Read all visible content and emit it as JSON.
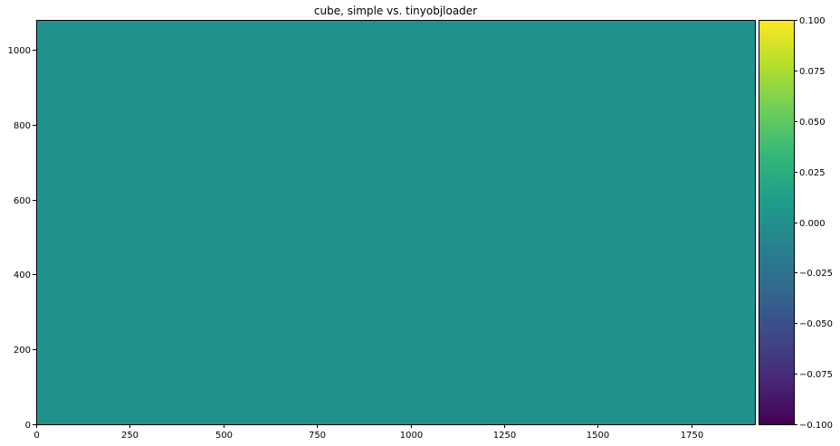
{
  "chart_data": {
    "type": "heatmap",
    "title": "cube, simple vs. tinyobjloader",
    "xlabel": "",
    "ylabel": "",
    "xlim": [
      0,
      1920
    ],
    "ylim": [
      0,
      1080
    ],
    "x_ticks": [
      0,
      250,
      500,
      750,
      1000,
      1250,
      1500,
      1750
    ],
    "x_tick_labels": [
      "0",
      "250",
      "500",
      "750",
      "1000",
      "1250",
      "1500",
      "1750"
    ],
    "y_ticks": [
      0,
      200,
      400,
      600,
      800,
      1000
    ],
    "y_tick_labels": [
      "0",
      "200",
      "400",
      "600",
      "800",
      "1000"
    ],
    "grid": false,
    "colormap": "viridis",
    "field_value": 0.0,
    "colorbar": {
      "vmin": -0.1,
      "vmax": 0.1,
      "ticks": [
        -0.1,
        -0.075,
        -0.05,
        -0.025,
        0.0,
        0.025,
        0.05,
        0.075,
        0.1
      ],
      "tick_labels": [
        "−0.100",
        "−0.075",
        "−0.050",
        "−0.025",
        "0.000",
        "0.025",
        "0.050",
        "0.075",
        "0.100"
      ],
      "placement": "right"
    },
    "colors": {
      "field": "#21918c",
      "viridis_stops": [
        "#440154",
        "#482878",
        "#3e4989",
        "#31688e",
        "#26828e",
        "#1f9e89",
        "#35b779",
        "#6ece58",
        "#b5de2b",
        "#fde725"
      ]
    }
  }
}
